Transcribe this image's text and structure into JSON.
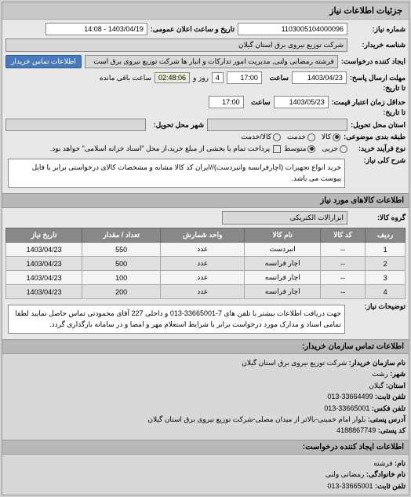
{
  "header": "جزئیات اطلاعات نیاز",
  "fields": {
    "need_number_label": "شماره نیاز:",
    "need_number": "1103005104000096",
    "announce_label": "تاریخ و ساعت اعلان عمومی:",
    "announce_value": "1403/04/19 - 14:08",
    "buyer_label": "شناسه خریدار:",
    "buyer_value": "شرکت توزیع نیروی برق استان گیلان",
    "creator_label": "ایجاد کننده درخواست:",
    "creator_value": "فرشته رمضانی ولنی, مدیریت امور تدارکات و انبار ها شرکت توزیع نیروی برق است",
    "contact_btn": "اطلاعات تماس خریدار",
    "deadline_label": "مهلت ارسال پاسخ:",
    "until_date_label": "تا تاریخ:",
    "deadline_date": "1403/04/23",
    "deadline_time_label": "ساعت",
    "deadline_time": "17:00",
    "remain_day": "4",
    "remain_day_label": "روز و",
    "remain_time": "02:48:06",
    "remain_label": "ساعت باقی مانده",
    "validity_label": "حداقل زمان اعتبار قیمت:",
    "validity_until": "تا تاریخ:",
    "validity_date": "1403/05/23",
    "validity_time": "17:00",
    "province_label": "استان محل تحویل:",
    "city_label": "شهر محل تحویل:",
    "pkg_label": "طبقه بندی موضوعی:",
    "goods": "کالا",
    "service": "خدمت",
    "goods_service": "کالا/خدمت",
    "process_label": "نوع فرآیند خرید:",
    "small": "جزیی",
    "medium": "متوسط",
    "note": "پرداخت تمام یا بخشی از مبلغ خرید،از محل \"اسناد خزانه اسلامی\" خواهد بود.",
    "overall_desc_label": "شرح کلی نیاز:",
    "overall_desc": "خرید انواع تجهیزات (اچارفرانسه وانبردست)//ایران کد کالا مشابه و مشخصات کالای درخواستی برابر با فایل پیوست می باشد.",
    "goods_info_title": "اطلاعات کالاهای مورد نیاز",
    "goods_group_label": "گروه کالا:",
    "goods_group": "ابزارالات الکتریکی",
    "notes_label": "توضیحات نیاز:",
    "notes": "جهت دریافت اطلاعات بیشتر با تلفن های 7-33665001-013 و داخلی 227 آقای محمودتی تماس حاصل نمایید لطفا تمامی اسناد و مدارک مورد درخواست برابر با شرایط استعلام مهر و امضا و در سامانه بارگذاری گردد.",
    "contact_title": "اطلاعات تماس سازمان خریدار:",
    "org_name_label": "نام سازمان خریدار:",
    "org_name": "شرکت توزیع نیروی برق استان گیلان",
    "city_c_label": "شهر:",
    "city_c": "رشت",
    "province_c_label": "استان:",
    "province_c": "گیلان",
    "phone_label": "تلفن ثابت:",
    "phone": "33664499-013",
    "fax_label": "تلفن فکس:",
    "fax": "33665001-013",
    "address_label": "آدرس پستی:",
    "address": "بلوار امام خمینی-بالاتر از میدان مصلی-شرکت توزیع نیروی برق استان گیلان",
    "postal_label": "کد پستی:",
    "postal": "4188867749",
    "req_creator_title": "اطلاعات ایجاد کننده درخواست:",
    "fname_label": "نام:",
    "fname": "فرشته",
    "lname_label": "نام خانوادگی:",
    "lname": "رمضانی ولنی",
    "req_phone_label": "تلفن ثابت:",
    "req_phone": "33665001-013"
  },
  "table": {
    "columns": [
      "ردیف",
      "کد کالا",
      "نام کالا",
      "واحد شمارش",
      "تعداد / مقدار",
      "تاریخ نیاز"
    ],
    "rows": [
      [
        "1",
        "--",
        "انبردست",
        "عدد",
        "550",
        "1403/04/23"
      ],
      [
        "2",
        "--",
        "اچار فرانسه",
        "عدد",
        "500",
        "1403/04/23"
      ],
      [
        "3",
        "--",
        "اچار فرانسه",
        "عدد",
        "100",
        "1403/04/23"
      ],
      [
        "4",
        "--",
        "اچار فرانسه",
        "عدد",
        "200",
        "1403/04/23"
      ]
    ]
  }
}
